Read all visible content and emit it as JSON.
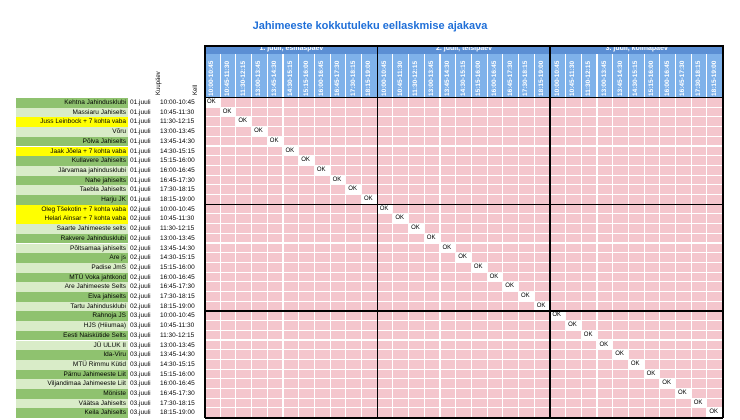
{
  "title": "Jahimeeste kokkutuleku eellaskmise ajakava",
  "col_labels": {
    "date": "Kuupäev",
    "time": "Kell"
  },
  "days": [
    "1. juuli, esmaspäev",
    "2. juuli, teisipäev",
    "3. juuli, kolmapäev"
  ],
  "time_slots": [
    "10:00-10:45",
    "10:45-11:30",
    "11:30-12:15",
    "13:00-13:45",
    "13:45-14:30",
    "14:30-15:15",
    "15:15-16:00",
    "16:00-16:45",
    "16:45-17:30",
    "17:30-18:15",
    "18:15-19:00"
  ],
  "ok_text": "OK",
  "colors": {
    "header_day": "#5b8fd4",
    "header_time": "#7fb2ea",
    "cell": "#f4c6cd",
    "club_green": "#8fc26f",
    "club_lightgreen": "#d9ecc8",
    "highlight": "#ffff00",
    "title": "#1f6fd8"
  },
  "rows": [
    {
      "club": "Kehtna Jahindusklubi",
      "date": "01.juuli",
      "time": "10:00-10:45",
      "style": "green"
    },
    {
      "club": "Massiaru Jahiselts",
      "date": "01.juuli",
      "time": "10:45-11:30",
      "style": "lightgreen"
    },
    {
      "club": "Juss Leinbock + 7 kohta vaba",
      "date": "01.juuli",
      "time": "11:30-12:15",
      "style": "yellow"
    },
    {
      "club": "Võru",
      "date": "01.juuli",
      "time": "13:00-13:45",
      "style": "lightgreen"
    },
    {
      "club": "Põlva Jahiselts",
      "date": "01.juuli",
      "time": "13:45-14:30",
      "style": "green"
    },
    {
      "club": "Jaak Jõela + 7 kohta vaba",
      "date": "01.juuli",
      "time": "14:30-15:15",
      "style": "yellow"
    },
    {
      "club": "Kullavere Jahiselts",
      "date": "01.juuli",
      "time": "15:15-16:00",
      "style": "green"
    },
    {
      "club": "Järvamaa jahindusklubi",
      "date": "01.juuli",
      "time": "16:00-16:45",
      "style": "lightgreen"
    },
    {
      "club": "Nahe jahiselts",
      "date": "01.juuli",
      "time": "16:45-17:30",
      "style": "green"
    },
    {
      "club": "Taebla Jahiselts",
      "date": "01.juuli",
      "time": "17:30-18:15",
      "style": "lightgreen"
    },
    {
      "club": "Harju JK",
      "date": "01.juuli",
      "time": "18:15-19:00",
      "style": "green"
    },
    {
      "club": "Oleg Tšekotin + 7 kohta vaba",
      "date": "02.juuli",
      "time": "10:00-10:45",
      "style": "yellow"
    },
    {
      "club": "Helari Ainsar + 7 kohta vaba",
      "date": "02.juuli",
      "time": "10:45-11:30",
      "style": "yellow"
    },
    {
      "club": "Saarte Jahimeeste selts",
      "date": "02.juuli",
      "time": "11:30-12:15",
      "style": "lightgreen"
    },
    {
      "club": "Rakvere Jahindusklubi",
      "date": "02.juuli",
      "time": "13:00-13:45",
      "style": "green"
    },
    {
      "club": "Põltsamaa jahiselts",
      "date": "02.juuli",
      "time": "13:45-14:30",
      "style": "lightgreen"
    },
    {
      "club": "Are js",
      "date": "02.juuli",
      "time": "14:30-15:15",
      "style": "green"
    },
    {
      "club": "Padise JmS",
      "date": "02.juuli",
      "time": "15:15-16:00",
      "style": "lightgreen"
    },
    {
      "club": "MTÜ Voka jahtkond",
      "date": "02.juuli",
      "time": "16:00-16:45",
      "style": "green"
    },
    {
      "club": "Are Jahimeeste Selts",
      "date": "02.juuli",
      "time": "16:45-17:30",
      "style": "lightgreen"
    },
    {
      "club": "Elva jahiselts",
      "date": "02.juuli",
      "time": "17:30-18:15",
      "style": "green"
    },
    {
      "club": "Tartu Jahindusklubi",
      "date": "02.juuli",
      "time": "18:15-19:00",
      "style": "lightgreen"
    },
    {
      "club": "Rahnoja JS",
      "date": "03.juuli",
      "time": "10:00-10:45",
      "style": "green"
    },
    {
      "club": "HJS (Hiiumaa)",
      "date": "03.juuli",
      "time": "10:45-11:30",
      "style": "lightgreen"
    },
    {
      "club": "Eesti Naiskütide Selts",
      "date": "03.juuli",
      "time": "11:30-12:15",
      "style": "green"
    },
    {
      "club": "JÜ ULUK II",
      "date": "03.juuli",
      "time": "13:00-13:45",
      "style": "lightgreen"
    },
    {
      "club": "Ida-Viru",
      "date": "03.juuli",
      "time": "13:45-14:30",
      "style": "green"
    },
    {
      "club": "MTÜ Rimmu Kütid",
      "date": "03.juuli",
      "time": "14:30-15:15",
      "style": "lightgreen"
    },
    {
      "club": "Pärnu Jahimeeste Liit",
      "date": "03.juuli",
      "time": "15:15-16:00",
      "style": "green"
    },
    {
      "club": "Viljandimaa Jahimeeste Liit",
      "date": "03.juuli",
      "time": "16:00-16:45",
      "style": "lightgreen"
    },
    {
      "club": "Möniste",
      "date": "03.juuli",
      "time": "16:45-17:30",
      "style": "green"
    },
    {
      "club": "Väätsa Jahiselts",
      "date": "03.juuli",
      "time": "17:30-18:15",
      "style": "lightgreen"
    },
    {
      "club": "Keila Jahiselts",
      "date": "03.juuli",
      "time": "18:15-19:00",
      "style": "green"
    }
  ]
}
